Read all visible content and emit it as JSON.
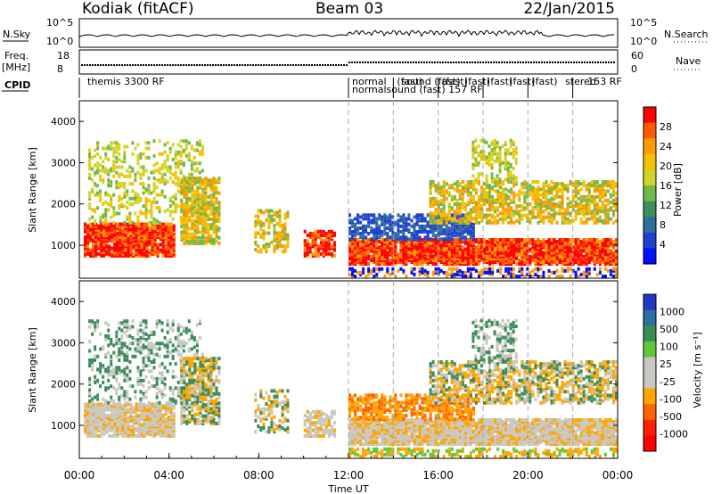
{
  "header": {
    "station": "Kodiak (fitACF)",
    "beam": "Beam 03",
    "date": "22/Jan/2015"
  },
  "status_panels": {
    "nsky": {
      "label": "N.Sky",
      "ticks": [
        "10^5",
        "10^0"
      ],
      "right_label": "N.Search",
      "right_ticks": [
        "10^5",
        "10^0"
      ]
    },
    "freq": {
      "label_line1": "Freq.",
      "label_line2": "[MHz]",
      "ticks": [
        "18",
        "8"
      ],
      "right_label": "Nave",
      "right_ticks": [
        "60",
        "0"
      ]
    },
    "cpid": {
      "label": "CPID",
      "entries": [
        {
          "text": "themis 3300 RF",
          "x": 0.2
        },
        {
          "text": "normal",
          "x": 12.0
        },
        {
          "text": "normalsound (fast) 157 RF",
          "x": 12.0
        },
        {
          "text": "(fast)",
          "x": 14.0
        },
        {
          "text": "sound (fast)",
          "x": 14.2
        },
        {
          "text": "(fast)",
          "x": 16.0
        },
        {
          "text": "(fast)",
          "x": 17.0
        },
        {
          "text": "(fast)",
          "x": 18.0
        },
        {
          "text": "(fast)",
          "x": 19.0
        },
        {
          "text": "(fast)",
          "x": 20.0
        },
        {
          "text": "stereo",
          "x": 21.5
        },
        {
          "text": "153 RF",
          "x": 22.5
        }
      ]
    }
  },
  "chart_data": [
    {
      "type": "heatmap",
      "name": "Power",
      "ylabel": "Slant Range [km]",
      "ylim": [
        200,
        4500
      ],
      "yticks": [
        1000,
        2000,
        3000,
        4000
      ],
      "colorbar": {
        "label": "Power [dB]",
        "ticks": [
          "28",
          "24",
          "20",
          "16",
          "12",
          "8",
          "4"
        ],
        "colors": [
          "#ff0000",
          "#ff5a00",
          "#ff9a00",
          "#f2c200",
          "#cfd62a",
          "#72b94a",
          "#3a8f5a",
          "#2d6e9a",
          "#2040d0",
          "#0010ff"
        ]
      }
    },
    {
      "type": "heatmap",
      "name": "Velocity",
      "ylabel": "Slant Range [km]",
      "ylim": [
        200,
        4500
      ],
      "yticks": [
        1000,
        2000,
        3000,
        4000
      ],
      "colorbar": {
        "label": "Velocity [m s⁻¹]",
        "ticks": [
          "1000",
          "500",
          "100",
          "25",
          "-25",
          "-100",
          "-500",
          "-1000"
        ],
        "colors": [
          "#2236c8",
          "#2c6fa0",
          "#3c8c5a",
          "#5ec83a",
          "#c8c8c0",
          "#c8c8c0",
          "#ffa500",
          "#ff6400",
          "#ff2000",
          "#ff0000"
        ]
      }
    }
  ],
  "xaxis": {
    "label": "Time UT",
    "ticks": [
      "00:00",
      "04:00",
      "08:00",
      "12:00",
      "16:00",
      "20:00",
      "00:00"
    ]
  }
}
